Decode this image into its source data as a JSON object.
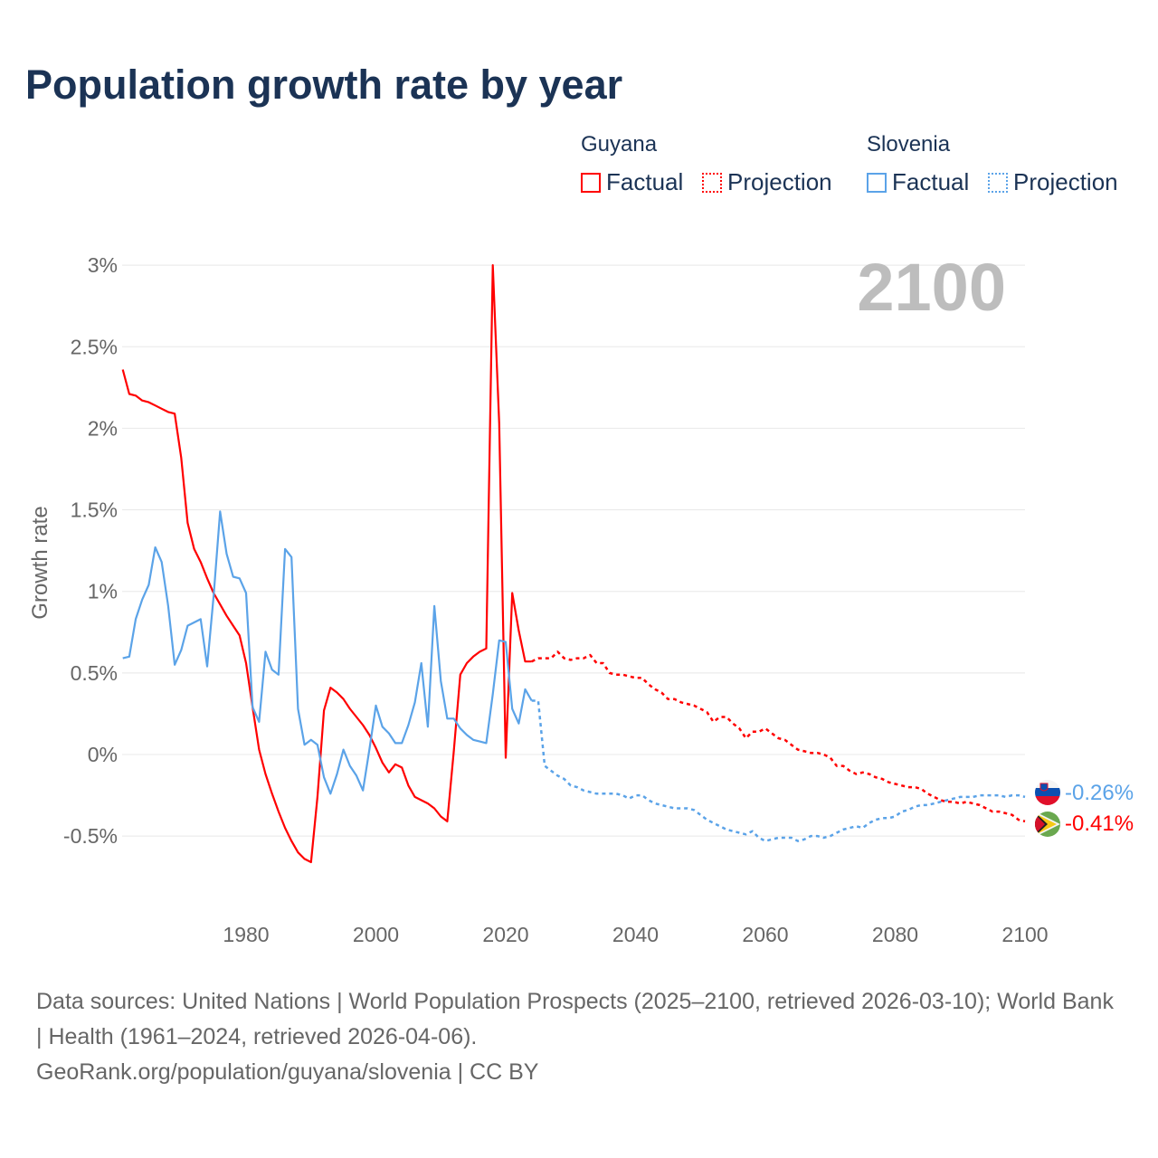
{
  "title": "Population growth rate by year",
  "legend": {
    "groups": [
      {
        "name": "Guyana",
        "color": "#ff0000",
        "factual": "Factual",
        "projection": "Projection"
      },
      {
        "name": "Slovenia",
        "color": "#5ba3e8",
        "factual": "Factual",
        "projection": "Projection"
      }
    ]
  },
  "footer": {
    "sources": "Data sources: United Nations | World Population Prospects (2025–2100, retrieved 2026-03-10); World Bank | Health (1961–2024, retrieved 2026-04-06).",
    "credit": "GeoRank.org/population/guyana/slovenia | CC BY"
  },
  "chart_data": {
    "type": "line",
    "title": "Population growth rate by year",
    "ylabel": "Growth rate",
    "xlabel": "",
    "year_label": "2100",
    "xlim": [
      1961,
      2100
    ],
    "ylim": [
      -0.8,
      3.0
    ],
    "x_ticks": [
      1980,
      2000,
      2020,
      2040,
      2060,
      2080,
      2100
    ],
    "y_ticks": [
      -0.5,
      0,
      0.5,
      1,
      1.5,
      2,
      2.5,
      3
    ],
    "y_tick_labels": [
      "-0.5%",
      "0%",
      "0.5%",
      "1%",
      "1.5%",
      "2%",
      "2.5%",
      "3%"
    ],
    "grid": true,
    "legend_position": "top-right",
    "series": [
      {
        "name": "Guyana",
        "kind": "factual",
        "color": "#ff0000",
        "start_year": 1961,
        "values": [
          2.36,
          2.21,
          2.2,
          2.17,
          2.16,
          2.14,
          2.12,
          2.1,
          2.09,
          1.82,
          1.42,
          1.26,
          1.18,
          1.08,
          0.99,
          0.92,
          0.85,
          0.79,
          0.73,
          0.56,
          0.29,
          0.03,
          -0.12,
          -0.24,
          -0.35,
          -0.45,
          -0.53,
          -0.6,
          -0.64,
          -0.66,
          -0.26,
          0.27,
          0.41,
          0.38,
          0.34,
          0.28,
          0.23,
          0.18,
          0.12,
          0.04,
          -0.05,
          -0.11,
          -0.06,
          -0.08,
          -0.19,
          -0.26,
          -0.28,
          -0.3,
          -0.33,
          -0.38,
          -0.41,
          0.02,
          0.49,
          0.56,
          0.6,
          0.63,
          0.65,
          3.0,
          2.03,
          -0.02,
          0.99,
          0.76,
          0.57,
          0.57
        ]
      },
      {
        "name": "Guyana",
        "kind": "projection",
        "color": "#ff0000",
        "start_year": 2024,
        "values": [
          0.57,
          0.59,
          0.59,
          0.59,
          0.63,
          0.59,
          0.58,
          0.59,
          0.59,
          0.61,
          0.56,
          0.56,
          0.5,
          0.49,
          0.49,
          0.48,
          0.47,
          0.47,
          0.43,
          0.4,
          0.38,
          0.34,
          0.34,
          0.32,
          0.31,
          0.3,
          0.28,
          0.26,
          0.2,
          0.23,
          0.23,
          0.19,
          0.16,
          0.1,
          0.14,
          0.14,
          0.16,
          0.13,
          0.1,
          0.09,
          0.06,
          0.03,
          0.02,
          0.01,
          0.01,
          0.0,
          -0.02,
          -0.07,
          -0.07,
          -0.1,
          -0.12,
          -0.11,
          -0.12,
          -0.14,
          -0.15,
          -0.17,
          -0.18,
          -0.19,
          -0.2,
          -0.2,
          -0.21,
          -0.24,
          -0.26,
          -0.28,
          -0.29,
          -0.29,
          -0.3,
          -0.29,
          -0.3,
          -0.31,
          -0.33,
          -0.35,
          -0.35,
          -0.36,
          -0.37,
          -0.4,
          -0.41
        ],
        "end_label": "-0.41%"
      },
      {
        "name": "Slovenia",
        "kind": "factual",
        "color": "#5ba3e8",
        "start_year": 1961,
        "values": [
          0.59,
          0.6,
          0.83,
          0.95,
          1.04,
          1.27,
          1.18,
          0.91,
          0.55,
          0.64,
          0.79,
          0.81,
          0.83,
          0.54,
          0.97,
          1.49,
          1.23,
          1.09,
          1.08,
          0.99,
          0.29,
          0.2,
          0.63,
          0.52,
          0.49,
          1.26,
          1.21,
          0.28,
          0.06,
          0.09,
          0.06,
          -0.14,
          -0.24,
          -0.12,
          0.03,
          -0.07,
          -0.13,
          -0.22,
          0.03,
          0.3,
          0.17,
          0.13,
          0.07,
          0.07,
          0.18,
          0.32,
          0.56,
          0.17,
          0.91,
          0.45,
          0.22,
          0.22,
          0.16,
          0.12,
          0.09,
          0.08,
          0.07,
          0.37,
          0.7,
          0.69,
          0.28,
          0.19,
          0.4,
          0.33
        ]
      },
      {
        "name": "Slovenia",
        "kind": "projection",
        "color": "#5ba3e8",
        "start_year": 2024,
        "values": [
          0.33,
          0.33,
          -0.07,
          -0.1,
          -0.13,
          -0.15,
          -0.19,
          -0.2,
          -0.22,
          -0.23,
          -0.24,
          -0.24,
          -0.24,
          -0.24,
          -0.25,
          -0.27,
          -0.25,
          -0.25,
          -0.28,
          -0.3,
          -0.31,
          -0.32,
          -0.33,
          -0.33,
          -0.33,
          -0.34,
          -0.37,
          -0.4,
          -0.42,
          -0.44,
          -0.46,
          -0.47,
          -0.48,
          -0.49,
          -0.47,
          -0.51,
          -0.53,
          -0.52,
          -0.51,
          -0.51,
          -0.51,
          -0.53,
          -0.52,
          -0.5,
          -0.5,
          -0.51,
          -0.5,
          -0.48,
          -0.46,
          -0.45,
          -0.44,
          -0.45,
          -0.42,
          -0.4,
          -0.39,
          -0.39,
          -0.38,
          -0.35,
          -0.34,
          -0.32,
          -0.31,
          -0.31,
          -0.3,
          -0.29,
          -0.28,
          -0.27,
          -0.26,
          -0.26,
          -0.26,
          -0.25,
          -0.25,
          -0.25,
          -0.25,
          -0.26,
          -0.25,
          -0.25,
          -0.26
        ],
        "end_label": "-0.26%"
      }
    ]
  }
}
